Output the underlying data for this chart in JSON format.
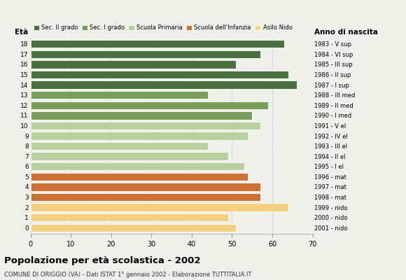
{
  "ages": [
    18,
    17,
    16,
    15,
    14,
    13,
    12,
    11,
    10,
    9,
    8,
    7,
    6,
    5,
    4,
    3,
    2,
    1,
    0
  ],
  "values": [
    63,
    57,
    51,
    64,
    66,
    44,
    59,
    55,
    57,
    54,
    44,
    49,
    53,
    54,
    57,
    57,
    64,
    49,
    51
  ],
  "anno_nascita": [
    "1983 - V sup",
    "1984 - VI sup",
    "1985 - III sup",
    "1986 - II sup",
    "1987 - I sup",
    "1988 - III med",
    "1989 - II med",
    "1990 - I med",
    "1991 - V el",
    "1992 - IV el",
    "1993 - III el",
    "1994 - II el",
    "1995 - I el",
    "1996 - mat",
    "1997 - mat",
    "1998 - mat",
    "1999 - nido",
    "2000 - nido",
    "2001 - nido"
  ],
  "colors": [
    "#4a7040",
    "#4a7040",
    "#4a7040",
    "#4a7040",
    "#4a7040",
    "#7a9e5a",
    "#7a9e5a",
    "#7a9e5a",
    "#b8d0a0",
    "#b8d0a0",
    "#b8d0a0",
    "#b8d0a0",
    "#b8d0a0",
    "#cc7033",
    "#cc7033",
    "#cc7033",
    "#f5d080",
    "#f5d080",
    "#f5d080"
  ],
  "legend_labels": [
    "Sec. II grado",
    "Sec. I grado",
    "Scuola Primaria",
    "Scuola dell'Infanzia",
    "Asilo Nido"
  ],
  "legend_colors": [
    "#4a7040",
    "#7a9e5a",
    "#b8d0a0",
    "#cc7033",
    "#f5d080"
  ],
  "title": "Popolazione per età scolastica - 2002",
  "subtitle": "COMUNE DI ORIGGIO (VA) - Dati ISTAT 1° gennaio 2002 - Elaborazione TUTTITALIA.IT",
  "xlabel_eta": "Età",
  "xlabel_anno": "Anno di nascita",
  "xlim": [
    0,
    70
  ],
  "xticks": [
    0,
    10,
    20,
    30,
    40,
    50,
    60,
    70
  ],
  "background_color": "#f0f0eb",
  "grid_color": "#bbbbbb"
}
